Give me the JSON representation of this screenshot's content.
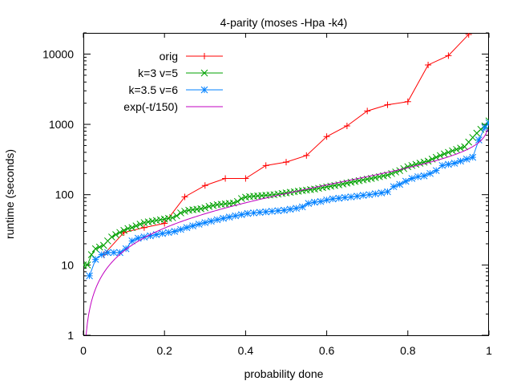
{
  "chart_data": {
    "type": "line",
    "title": "4-parity (moses -Hpa -k4)",
    "xlabel": "probability done",
    "ylabel": "runtime (seconds)",
    "xlim": [
      0,
      1
    ],
    "ylim": [
      1,
      20000
    ],
    "yscale": "log",
    "grid": false,
    "legend_position": "top-right",
    "x_ticks": [
      {
        "value": 0,
        "label": "0"
      },
      {
        "value": 0.2,
        "label": "0.2"
      },
      {
        "value": 0.4,
        "label": "0.4"
      },
      {
        "value": 0.6,
        "label": "0.6"
      },
      {
        "value": 0.8,
        "label": "0.8"
      },
      {
        "value": 1,
        "label": "1"
      }
    ],
    "y_ticks": [
      {
        "value": 1,
        "label": "1"
      },
      {
        "value": 10,
        "label": "10"
      },
      {
        "value": 100,
        "label": "100"
      },
      {
        "value": 1000,
        "label": "1000"
      },
      {
        "value": 10000,
        "label": "10000"
      }
    ],
    "series": [
      {
        "name": "orig",
        "color": "#ff0000",
        "marker": "plus",
        "x": [
          0.05,
          0.1,
          0.15,
          0.2,
          0.25,
          0.3,
          0.35,
          0.4,
          0.45,
          0.5,
          0.55,
          0.6,
          0.65,
          0.7,
          0.75,
          0.8,
          0.85,
          0.9,
          0.95
        ],
        "y": [
          14,
          29,
          34,
          39,
          93,
          135,
          170,
          170,
          260,
          290,
          360,
          670,
          950,
          1550,
          1900,
          2100,
          7000,
          9500,
          19000
        ]
      },
      {
        "name": "k=3 v=5",
        "color": "#00a000",
        "marker": "x",
        "x": [
          0.0,
          0.01,
          0.02,
          0.03,
          0.04,
          0.05,
          0.06,
          0.07,
          0.08,
          0.09,
          0.1,
          0.11,
          0.12,
          0.13,
          0.14,
          0.15,
          0.16,
          0.17,
          0.18,
          0.19,
          0.2,
          0.21,
          0.22,
          0.23,
          0.24,
          0.25,
          0.26,
          0.27,
          0.28,
          0.29,
          0.3,
          0.31,
          0.32,
          0.33,
          0.34,
          0.35,
          0.36,
          0.37,
          0.38,
          0.39,
          0.4,
          0.41,
          0.42,
          0.43,
          0.44,
          0.45,
          0.46,
          0.47,
          0.48,
          0.49,
          0.5,
          0.51,
          0.52,
          0.53,
          0.54,
          0.55,
          0.56,
          0.57,
          0.58,
          0.59,
          0.6,
          0.61,
          0.62,
          0.63,
          0.64,
          0.65,
          0.66,
          0.67,
          0.68,
          0.69,
          0.7,
          0.71,
          0.72,
          0.73,
          0.74,
          0.75,
          0.76,
          0.77,
          0.78,
          0.79,
          0.8,
          0.81,
          0.82,
          0.83,
          0.84,
          0.85,
          0.86,
          0.87,
          0.88,
          0.89,
          0.9,
          0.91,
          0.92,
          0.93,
          0.94,
          0.95,
          0.96,
          0.97,
          0.98,
          0.99,
          1.0
        ],
        "y": [
          10,
          10,
          14,
          17,
          18,
          19,
          22,
          25,
          27,
          29,
          31,
          33,
          34,
          36,
          38,
          40,
          41,
          42,
          43,
          44,
          45,
          46,
          47,
          50,
          55,
          58,
          60,
          61,
          62,
          63,
          65,
          68,
          70,
          72,
          73,
          74,
          75,
          76,
          80,
          88,
          92,
          94,
          95,
          96,
          97,
          98,
          99,
          100,
          102,
          104,
          106,
          108,
          110,
          112,
          114,
          116,
          118,
          120,
          123,
          126,
          129,
          132,
          135,
          138,
          142,
          146,
          150,
          154,
          158,
          162,
          166,
          170,
          175,
          180,
          185,
          190,
          200,
          210,
          220,
          235,
          250,
          260,
          270,
          280,
          290,
          300,
          320,
          340,
          360,
          380,
          400,
          420,
          440,
          460,
          480,
          560,
          650,
          750,
          850,
          950,
          1120
        ]
      },
      {
        "name": "k=3.5 v=6",
        "color": "#0080ff",
        "marker": "star",
        "x": [
          0.015,
          0.03,
          0.045,
          0.06,
          0.075,
          0.09,
          0.105,
          0.12,
          0.135,
          0.15,
          0.165,
          0.18,
          0.195,
          0.21,
          0.225,
          0.24,
          0.255,
          0.27,
          0.285,
          0.3,
          0.315,
          0.33,
          0.345,
          0.36,
          0.375,
          0.39,
          0.405,
          0.42,
          0.435,
          0.45,
          0.465,
          0.48,
          0.495,
          0.51,
          0.525,
          0.54,
          0.555,
          0.57,
          0.585,
          0.6,
          0.615,
          0.63,
          0.645,
          0.66,
          0.675,
          0.69,
          0.705,
          0.72,
          0.735,
          0.75,
          0.765,
          0.78,
          0.795,
          0.81,
          0.825,
          0.84,
          0.855,
          0.87,
          0.885,
          0.9,
          0.915,
          0.93,
          0.945,
          0.96,
          0.975,
          0.99,
          1.0
        ],
        "y": [
          7,
          12,
          14,
          15,
          15,
          15,
          17,
          22,
          24,
          25,
          26,
          27,
          28,
          29,
          30,
          32,
          34,
          36,
          38,
          40,
          42,
          44,
          46,
          48,
          50,
          52,
          54,
          55,
          56,
          57,
          58,
          59,
          60,
          62,
          64,
          67,
          75,
          78,
          80,
          84,
          87,
          89,
          91,
          93,
          95,
          98,
          100,
          103,
          106,
          110,
          130,
          140,
          155,
          170,
          180,
          185,
          200,
          220,
          260,
          270,
          280,
          300,
          320,
          340,
          600,
          900,
          1050
        ]
      },
      {
        "name": "exp(-t/150)",
        "color": "#c000c0",
        "marker": "none",
        "function_scale": 150,
        "x_range": [
          0,
          1
        ]
      }
    ]
  }
}
